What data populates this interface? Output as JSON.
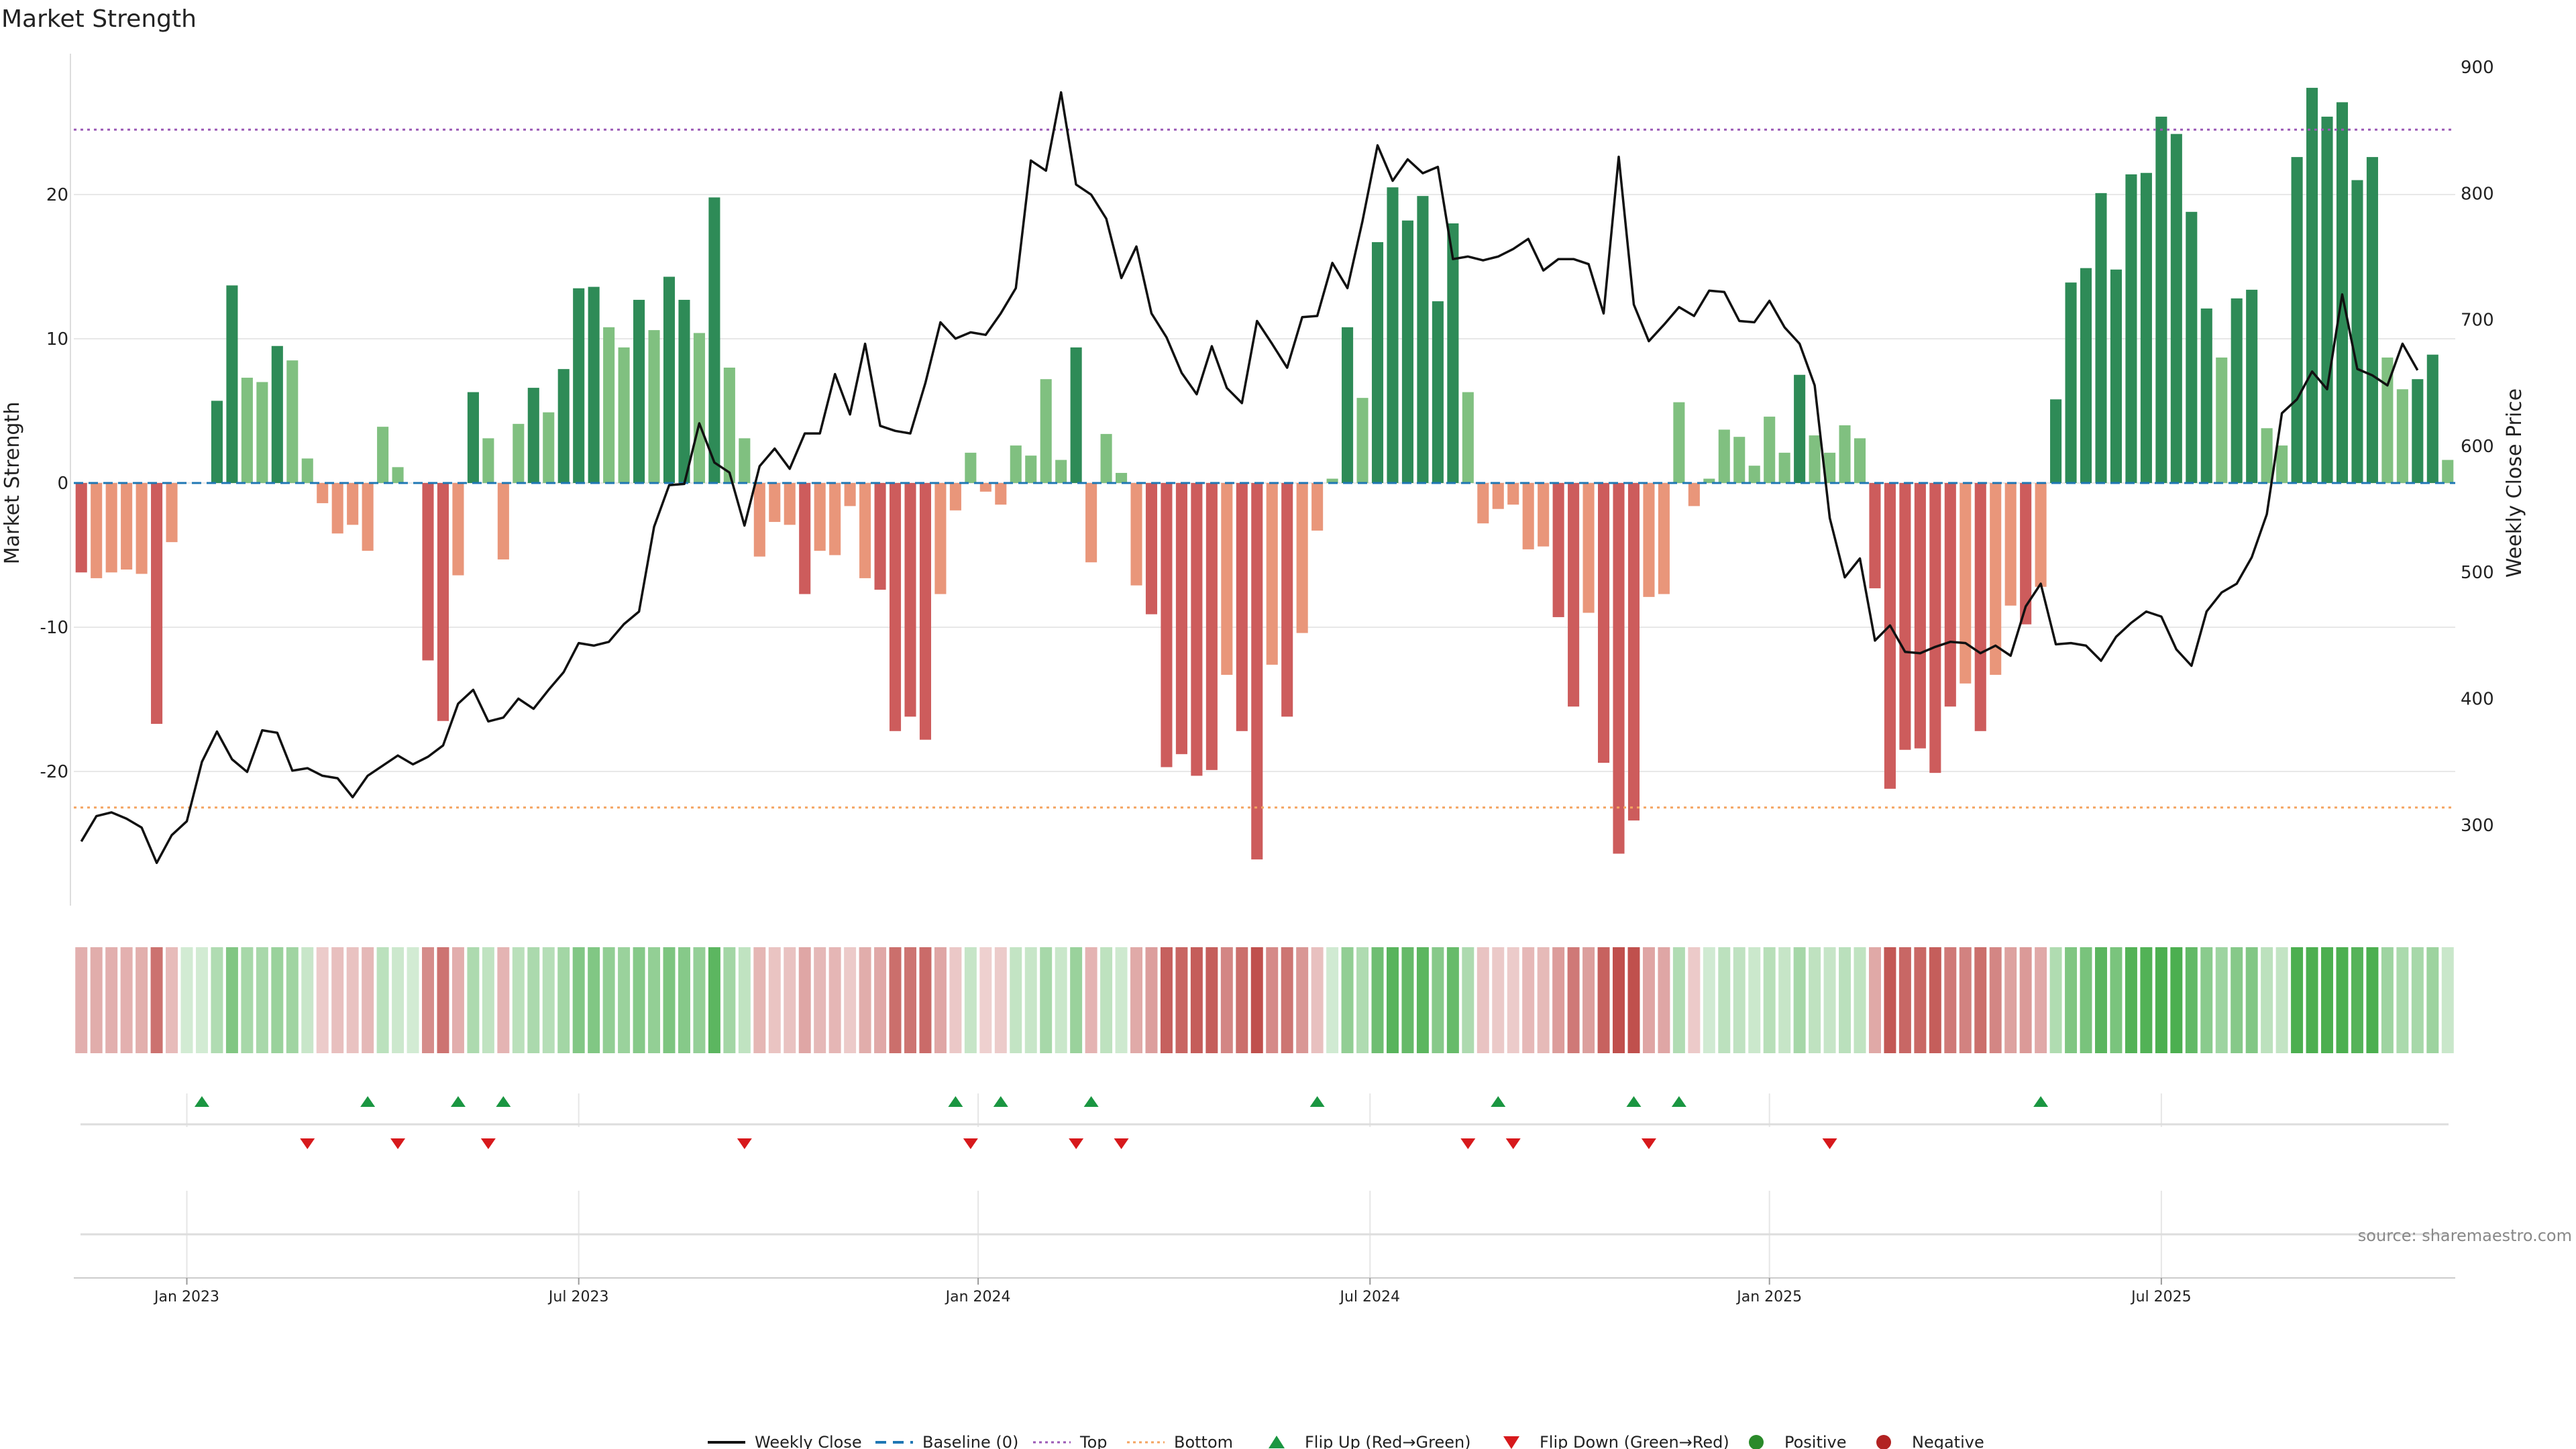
{
  "chart_data": {
    "type": "bar",
    "title": "Market Strength",
    "ylabel_left": "Market Strength",
    "ylabel_right": "Weekly Close Price",
    "left_yticks": [
      -20,
      -10,
      0,
      10,
      20
    ],
    "left_ylim": [
      -30,
      30
    ],
    "right_yticks": [
      300,
      400,
      500,
      600,
      700,
      800,
      900
    ],
    "right_ylim": [
      230,
      910
    ],
    "x_ticks": [
      {
        "label": "Jan 2023",
        "week": 7
      },
      {
        "label": "Jul 2023",
        "week": 33
      },
      {
        "label": "Jan 2024",
        "week": 59.5
      },
      {
        "label": "Jul 2024",
        "week": 85.5
      },
      {
        "label": "Jan 2025",
        "week": 112
      },
      {
        "label": "Jul 2025",
        "week": 138
      }
    ],
    "top_line": 24.5,
    "bottom_line": -22.5,
    "source": "source: sharemaestro.com",
    "colors": {
      "strong_pos": "#2e8b57",
      "weak_pos": "#80c080",
      "strong_neg": "#cd5c5c",
      "weak_neg": "#e9967a",
      "price_line": "#111111",
      "baseline": "#1f77b4",
      "top": "#9b59b6",
      "bottom": "#f4a460",
      "flip_up": "#1a9641",
      "flip_down": "#d7191c"
    },
    "strength": [
      -6.2,
      -6.6,
      -6.2,
      -6,
      -6.3,
      -16.7,
      -4.1,
      0,
      0,
      5.7,
      13.7,
      7.3,
      7,
      9.5,
      8.5,
      1.7,
      -1.4,
      -3.5,
      -2.9,
      -4.7,
      3.9,
      1.1,
      0,
      -12.3,
      -16.5,
      -6.4,
      6.3,
      3.1,
      -5.3,
      4.1,
      6.6,
      4.9,
      7.9,
      13.5,
      13.6,
      10.8,
      9.4,
      12.7,
      10.6,
      14.3,
      12.7,
      10.4,
      19.8,
      8,
      3.1,
      -5.1,
      -2.7,
      -2.9,
      -7.7,
      -4.7,
      -5,
      -1.6,
      -6.6,
      -7.4,
      -17.2,
      -16.2,
      -17.8,
      -7.7,
      -1.9,
      2.1,
      -0.6,
      -1.5,
      2.6,
      1.9,
      7.2,
      1.6,
      9.4,
      -5.5,
      3.4,
      0.7,
      -7.1,
      -9.1,
      -19.7,
      -18.8,
      -20.3,
      -19.9,
      -13.3,
      -17.2,
      -26.1,
      -12.6,
      -16.2,
      -10.4,
      -3.3,
      0.3,
      10.8,
      5.9,
      16.7,
      20.5,
      18.2,
      19.9,
      12.6,
      18,
      6.3,
      -2.8,
      -1.8,
      -1.5,
      -4.6,
      -4.4,
      -9.3,
      -15.5,
      -9,
      -19.4,
      -25.7,
      -23.4,
      -7.9,
      -7.7,
      5.6,
      -1.6,
      0.3,
      3.7,
      3.2,
      1.2,
      4.6,
      2.1,
      7.5,
      3.3,
      2.1,
      4,
      3.1,
      -7.3,
      -21.2,
      -18.5,
      -18.4,
      -20.1,
      -15.5,
      -13.9,
      -17.2,
      -13.3,
      -8.5,
      -9.8,
      -7.2,
      5.8,
      13.9,
      14.9,
      20.1,
      14.8,
      21.4,
      21.5,
      25.4,
      24.2,
      18.8,
      12.1,
      8.7,
      12.8,
      13.4,
      3.8,
      2.6,
      22.6,
      27.4,
      25.4,
      26.4,
      21,
      22.6,
      8.7,
      6.5,
      7.2,
      8.9,
      1.6
    ],
    "price": [
      287,
      307,
      310,
      305,
      298,
      270,
      292,
      303,
      350,
      374,
      352,
      342,
      375,
      373,
      343,
      345,
      339,
      337,
      322,
      339,
      347,
      355,
      348,
      354,
      363,
      396,
      407,
      382,
      385,
      400,
      392,
      407,
      421,
      444,
      442,
      445,
      459,
      469,
      536,
      569,
      570,
      618,
      587,
      579,
      537,
      584,
      598,
      582,
      610,
      610,
      657,
      625,
      681,
      616,
      612,
      610,
      650,
      698,
      685,
      690,
      688,
      705,
      725,
      826,
      818,
      880,
      807,
      799,
      780,
      733,
      758,
      705,
      686,
      658,
      641,
      679,
      646,
      634,
      699,
      681,
      662,
      702,
      703,
      745,
      725,
      778,
      838,
      810,
      827,
      816,
      821,
      748,
      750,
      747,
      750,
      756,
      764,
      739,
      748,
      748,
      744,
      705,
      829,
      712,
      683,
      696,
      710,
      703,
      723,
      722,
      699,
      698,
      715,
      694,
      681,
      648,
      543,
      496,
      511,
      446,
      458,
      437,
      436,
      441,
      445,
      444,
      436,
      442,
      434,
      473,
      491,
      443,
      444,
      442,
      430,
      449,
      460,
      469,
      465,
      439,
      426,
      469,
      484,
      491,
      512,
      546,
      626,
      637,
      659,
      645,
      720,
      661,
      656,
      648,
      681,
      660
    ],
    "flip_up_weeks": [
      8,
      19,
      25,
      28,
      58,
      61,
      67,
      82,
      94,
      103,
      106,
      130
    ],
    "flip_down_weeks": [
      15,
      21,
      27,
      44,
      59,
      66,
      69,
      92,
      95,
      104,
      116
    ]
  },
  "legend": [
    {
      "label": "Weekly Close",
      "icon": "line-icon"
    },
    {
      "label": "Baseline (0)",
      "icon": "dashed-line-icon"
    },
    {
      "label": "Top",
      "icon": "dotted-line-icon"
    },
    {
      "label": "Bottom",
      "icon": "dotted-line-icon"
    },
    {
      "label": "Flip Up (Red→Green)",
      "icon": "triangle-up-icon"
    },
    {
      "label": "Flip Down (Green→Red)",
      "icon": "triangle-down-icon"
    },
    {
      "label": "Positive",
      "icon": "circle-icon"
    },
    {
      "label": "Negative",
      "icon": "circle-icon"
    }
  ]
}
